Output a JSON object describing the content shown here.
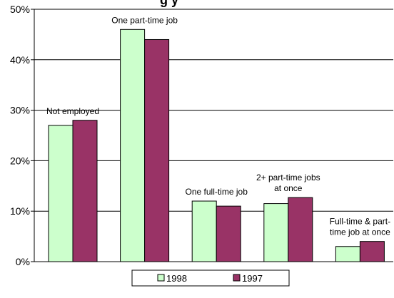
{
  "chart_data": {
    "type": "bar",
    "title_fragment": "g y",
    "categories": [
      "Not employed",
      "One part-time job",
      "One full-time job",
      "2+ part-time jobs at once",
      "Full-time & part-time job at once"
    ],
    "category_label_lines": [
      [
        "Not employed"
      ],
      [
        "One part-time job"
      ],
      [
        "One full-time job"
      ],
      [
        "2+ part-time jobs",
        "at once"
      ],
      [
        "Full-time & part-",
        "time job at once"
      ]
    ],
    "series": [
      {
        "name": "1998",
        "values": [
          27,
          46,
          12,
          11.5,
          3
        ],
        "color": "#ccffcc"
      },
      {
        "name": "1997",
        "values": [
          28,
          44,
          11,
          12.7,
          4
        ],
        "color": "#993366"
      }
    ],
    "y_ticks": [
      "0%",
      "10%",
      "20%",
      "30%",
      "40%",
      "50%"
    ],
    "ylim": [
      0,
      50
    ],
    "grid": true,
    "legend_position": "bottom"
  }
}
